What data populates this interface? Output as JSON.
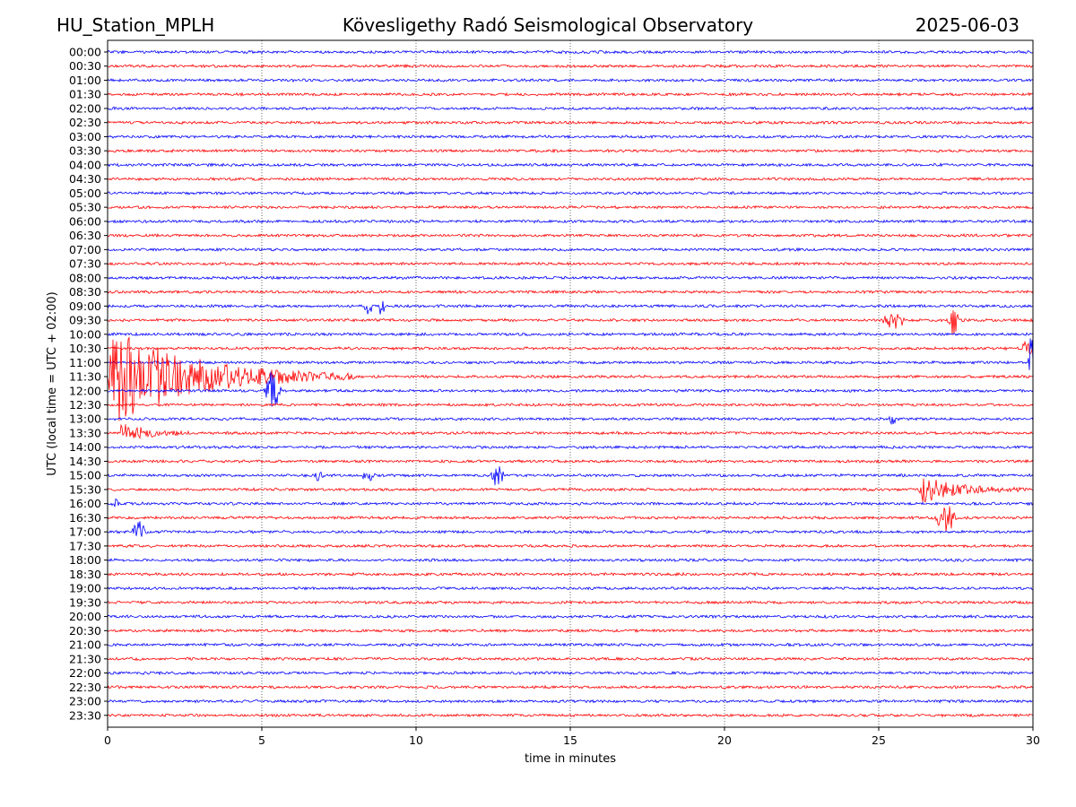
{
  "header": {
    "left": "HU_Station_MPLH",
    "center": "Kövesligethy Radó Seismological Observatory",
    "right": "2025-06-03"
  },
  "chart_data": {
    "type": "line",
    "title": "Kövesligethy Radó Seismological Observatory",
    "xlabel": "time in minutes",
    "ylabel": "UTC (local time = UTC + 02:00)",
    "xlim": [
      0,
      30
    ],
    "x_ticks": [
      "0",
      "5",
      "10",
      "15",
      "20",
      "25",
      "30"
    ],
    "x_tick_values": [
      0,
      5,
      10,
      15,
      20,
      25,
      30
    ],
    "grid": "vertical dotted at x ticks",
    "row_labels": [
      "00:00",
      "00:30",
      "01:00",
      "01:30",
      "02:00",
      "02:30",
      "03:00",
      "03:30",
      "04:00",
      "04:30",
      "05:00",
      "05:30",
      "06:00",
      "06:30",
      "07:00",
      "07:30",
      "08:00",
      "08:30",
      "09:00",
      "09:30",
      "10:00",
      "10:30",
      "11:00",
      "11:30",
      "12:00",
      "12:30",
      "13:00",
      "13:30",
      "14:00",
      "14:30",
      "15:00",
      "15:30",
      "16:00",
      "16:30",
      "17:00",
      "17:30",
      "18:00",
      "18:30",
      "19:00",
      "19:30",
      "20:00",
      "20:30",
      "21:00",
      "21:30",
      "22:00",
      "22:30",
      "23:00",
      "23:30"
    ],
    "trace_colors": [
      "#0000ff",
      "#ff0000"
    ],
    "events": [
      {
        "row": "09:00",
        "minute": 8.3,
        "duration_min": 0.3,
        "amplitude": 10
      },
      {
        "row": "09:00",
        "minute": 8.8,
        "duration_min": 0.2,
        "amplitude": 14
      },
      {
        "row": "09:30",
        "minute": 25.1,
        "duration_min": 0.8,
        "amplitude": 9
      },
      {
        "row": "09:30",
        "minute": 27.2,
        "duration_min": 0.4,
        "amplitude": 18
      },
      {
        "row": "10:30",
        "minute": 29.6,
        "duration_min": 0.4,
        "amplitude": 8
      },
      {
        "row": "11:00",
        "minute": 29.85,
        "duration_min": 0.15,
        "amplitude": 45
      },
      {
        "row": "11:30",
        "minute": 0.0,
        "duration_min": 8.0,
        "amplitude": 60
      },
      {
        "row": "12:00",
        "minute": 5.05,
        "duration_min": 0.6,
        "amplitude": 22
      },
      {
        "row": "13:00",
        "minute": 25.3,
        "duration_min": 0.3,
        "amplitude": 5
      },
      {
        "row": "13:30",
        "minute": 0.4,
        "duration_min": 2.5,
        "amplitude": 12
      },
      {
        "row": "15:00",
        "minute": 6.7,
        "duration_min": 0.3,
        "amplitude": 6
      },
      {
        "row": "15:00",
        "minute": 8.2,
        "duration_min": 0.5,
        "amplitude": 5
      },
      {
        "row": "15:00",
        "minute": 12.4,
        "duration_min": 0.5,
        "amplitude": 12
      },
      {
        "row": "15:30",
        "minute": 26.3,
        "duration_min": 3.7,
        "amplitude": 16
      },
      {
        "row": "16:00",
        "minute": 0.1,
        "duration_min": 0.3,
        "amplitude": 5
      },
      {
        "row": "16:30",
        "minute": 26.8,
        "duration_min": 0.8,
        "amplitude": 16
      },
      {
        "row": "17:00",
        "minute": 0.7,
        "duration_min": 0.6,
        "amplitude": 11
      }
    ]
  }
}
